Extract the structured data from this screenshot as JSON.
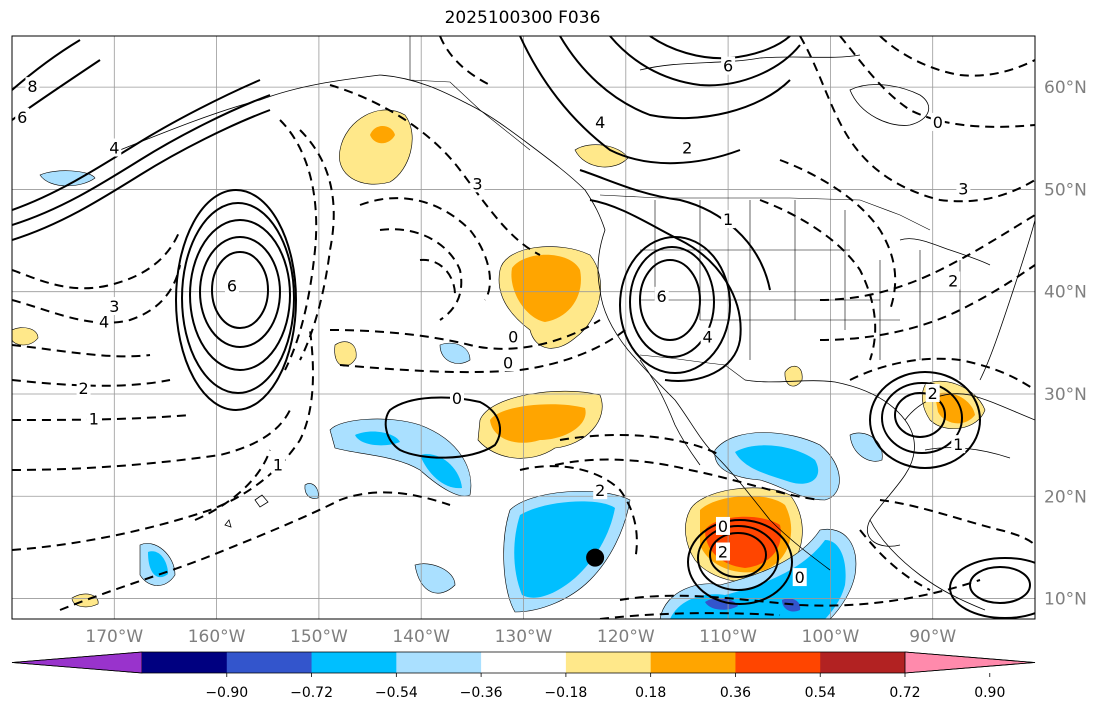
{
  "title": "2025100300 F036",
  "map": {
    "projection": "equirectangular",
    "lon_range": [
      -180,
      -80
    ],
    "lat_range": [
      8,
      65
    ],
    "grid": true,
    "lat_ticks": [
      {
        "value": 60,
        "label": "60°N"
      },
      {
        "value": 50,
        "label": "50°N"
      },
      {
        "value": 40,
        "label": "40°N"
      },
      {
        "value": 30,
        "label": "30°N"
      },
      {
        "value": 20,
        "label": "20°N"
      },
      {
        "value": 10,
        "label": "10°N"
      }
    ],
    "lon_ticks": [
      {
        "value": -170,
        "label": "170°W"
      },
      {
        "value": -160,
        "label": "160°W"
      },
      {
        "value": -150,
        "label": "150°W"
      },
      {
        "value": -140,
        "label": "140°W"
      },
      {
        "value": -130,
        "label": "130°W"
      },
      {
        "value": -120,
        "label": "120°W"
      },
      {
        "value": -110,
        "label": "110°W"
      },
      {
        "value": -100,
        "label": "100°W"
      },
      {
        "value": -90,
        "label": "90°W"
      }
    ],
    "marker": {
      "lon": -123,
      "lat": 14,
      "color": "#000000"
    },
    "contour_labels": [
      {
        "text": "6",
        "lon": -158.5,
        "lat": 40.5
      },
      {
        "text": "4",
        "lon": -170,
        "lat": 54
      },
      {
        "text": "8",
        "lon": -178,
        "lat": 60
      },
      {
        "text": "6",
        "lon": -179,
        "lat": 57
      },
      {
        "text": "3",
        "lon": -170,
        "lat": 38.5
      },
      {
        "text": "4",
        "lon": -171,
        "lat": 37
      },
      {
        "text": "2",
        "lon": -173,
        "lat": 30.5
      },
      {
        "text": "1",
        "lon": -172,
        "lat": 27.5
      },
      {
        "text": "1",
        "lon": -154,
        "lat": 23
      },
      {
        "text": "3",
        "lon": -134.5,
        "lat": 50.5
      },
      {
        "text": "0",
        "lon": -131,
        "lat": 35.5
      },
      {
        "text": "0",
        "lon": -131.5,
        "lat": 33
      },
      {
        "text": "0",
        "lon": -136.5,
        "lat": 29.5
      },
      {
        "text": "2",
        "lon": -122.5,
        "lat": 20.5
      },
      {
        "text": "6",
        "lon": -116.5,
        "lat": 39.5
      },
      {
        "text": "4",
        "lon": -112,
        "lat": 35.5
      },
      {
        "text": "4",
        "lon": -122.5,
        "lat": 56.5
      },
      {
        "text": "2",
        "lon": -114,
        "lat": 54
      },
      {
        "text": "6",
        "lon": -110,
        "lat": 62
      },
      {
        "text": "1",
        "lon": -110,
        "lat": 47
      },
      {
        "text": "0",
        "lon": -89.5,
        "lat": 56.5
      },
      {
        "text": "3",
        "lon": -87,
        "lat": 50
      },
      {
        "text": "2",
        "lon": -88,
        "lat": 41
      },
      {
        "text": "2",
        "lon": -90,
        "lat": 30
      },
      {
        "text": "1",
        "lon": -87.5,
        "lat": 25
      },
      {
        "text": "0",
        "lon": -110.5,
        "lat": 17
      },
      {
        "text": "2",
        "lon": -110.5,
        "lat": 14.5
      },
      {
        "text": "0",
        "lon": -103,
        "lat": 12
      }
    ]
  },
  "colorbar": {
    "colors": [
      "#9933cc",
      "#000080",
      "#3355cc",
      "#00bfff",
      "#aae0ff",
      "#ffffff",
      "#ffe88a",
      "#ffa500",
      "#ff4500",
      "#b22222",
      "#ff8aac"
    ],
    "tick_labels": [
      "−0.90",
      "−0.72",
      "−0.54",
      "−0.36",
      "−0.18",
      "0.18",
      "0.36",
      "0.54",
      "0.72",
      "0.90"
    ]
  }
}
